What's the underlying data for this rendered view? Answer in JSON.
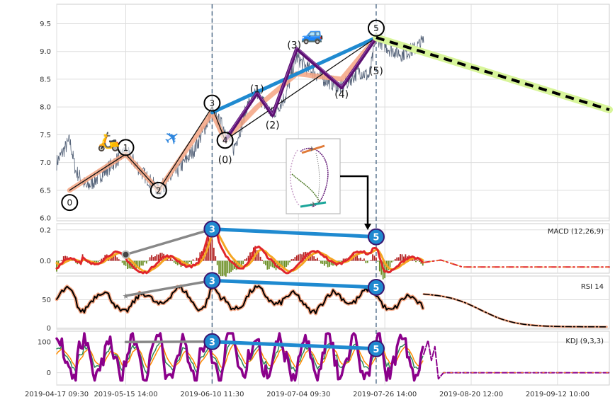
{
  "chart_data": {
    "type": "line",
    "title": "",
    "x_tick_labels": [
      "2019-04-17 09:30",
      "2019-05-15 14:00",
      "2019-06-10 11:30",
      "2019-07-04 09:30",
      "2019-07-26 14:00",
      "2019-08-20 12:00",
      "2019-09-12 10:00"
    ],
    "x_tick_positions": [
      0,
      80,
      180,
      280,
      380,
      480,
      580
    ],
    "x_range": [
      0,
      640
    ],
    "dashed_vlines_x": [
      180,
      370
    ],
    "grid": true,
    "price": {
      "ylim": [
        5.95,
        9.85
      ],
      "yticks": [
        "6.0",
        "6.5",
        "7.0",
        "7.5",
        "8.0",
        "8.5",
        "9.0",
        "9.5"
      ],
      "ytick_values": [
        6.0,
        6.5,
        7.0,
        7.5,
        8.0,
        8.5,
        9.0,
        9.5
      ],
      "anchors": [
        {
          "x": 0,
          "y": 7.0
        },
        {
          "x": 15,
          "y": 7.4
        },
        {
          "x": 22,
          "y": 6.85
        },
        {
          "x": 35,
          "y": 6.55
        },
        {
          "x": 60,
          "y": 6.9
        },
        {
          "x": 80,
          "y": 7.2
        },
        {
          "x": 100,
          "y": 6.8
        },
        {
          "x": 118,
          "y": 6.5
        },
        {
          "x": 140,
          "y": 6.85
        },
        {
          "x": 160,
          "y": 7.25
        },
        {
          "x": 180,
          "y": 7.9
        },
        {
          "x": 195,
          "y": 7.6
        },
        {
          "x": 205,
          "y": 7.25
        },
        {
          "x": 215,
          "y": 7.7
        },
        {
          "x": 220,
          "y": 8.0
        },
        {
          "x": 232,
          "y": 8.25
        },
        {
          "x": 250,
          "y": 7.85
        },
        {
          "x": 265,
          "y": 8.2
        },
        {
          "x": 278,
          "y": 8.9
        },
        {
          "x": 290,
          "y": 8.7
        },
        {
          "x": 310,
          "y": 8.5
        },
        {
          "x": 330,
          "y": 8.35
        },
        {
          "x": 350,
          "y": 8.65
        },
        {
          "x": 362,
          "y": 8.55
        },
        {
          "x": 370,
          "y": 9.25
        },
        {
          "x": 385,
          "y": 9.05
        },
        {
          "x": 400,
          "y": 8.95
        },
        {
          "x": 415,
          "y": 9.05
        },
        {
          "x": 425,
          "y": 9.2
        }
      ],
      "forecast_line": {
        "start": [
          370,
          9.25
        ],
        "end": [
          640,
          7.95
        ]
      },
      "zigzag": [
        [
          15,
          6.5
        ],
        [
          80,
          7.15
        ],
        [
          118,
          6.5
        ],
        [
          180,
          8.0
        ],
        [
          195,
          7.4
        ],
        [
          370,
          9.25
        ]
      ],
      "salmon_path": [
        [
          15,
          6.5
        ],
        [
          80,
          7.15
        ],
        [
          118,
          6.5
        ],
        [
          180,
          7.9
        ],
        [
          195,
          7.4
        ],
        [
          232,
          8.0
        ],
        [
          278,
          8.6
        ],
        [
          330,
          8.5
        ],
        [
          370,
          9.25
        ]
      ],
      "blue_trend": {
        "start": [
          180,
          7.9
        ],
        "end": [
          370,
          9.25
        ]
      },
      "purple_waves": [
        [
          195,
          7.4
        ],
        [
          232,
          8.25
        ],
        [
          250,
          7.85
        ],
        [
          278,
          9.05
        ],
        [
          330,
          8.35
        ],
        [
          370,
          9.25
        ]
      ],
      "points": [
        {
          "label": "0",
          "x": 15,
          "y": 6.28,
          "circled": true
        },
        {
          "label": "1",
          "x": 80,
          "y": 7.27,
          "circled": true
        },
        {
          "label": "2",
          "x": 118,
          "y": 6.5,
          "circled": true
        },
        {
          "label": "3",
          "x": 180,
          "y": 8.07,
          "circled": true
        },
        {
          "label": "4",
          "x": 195,
          "y": 7.4,
          "circled": true
        },
        {
          "label": "5",
          "x": 370,
          "y": 9.42,
          "circled": true
        },
        {
          "label": "(1)",
          "x": 232,
          "y": 8.33,
          "circled": false
        },
        {
          "label": "(2)",
          "x": 250,
          "y": 7.68,
          "circled": false
        },
        {
          "label": "(0)",
          "x": 195,
          "y": 7.05,
          "circled": false
        },
        {
          "label": "(3)",
          "x": 275,
          "y": 9.12,
          "circled": false
        },
        {
          "label": "(4)",
          "x": 330,
          "y": 8.23,
          "circled": false
        },
        {
          "label": "(5)",
          "x": 370,
          "y": 8.65,
          "circled": false
        }
      ],
      "emojis": [
        {
          "name": "scooter",
          "glyph": "🛵",
          "x": 60,
          "y": 7.27
        },
        {
          "name": "airplane",
          "glyph": "✈",
          "x": 138,
          "y": 7.35
        },
        {
          "name": "car",
          "glyph": "🚙",
          "x": 296,
          "y": 9.2
        }
      ]
    },
    "macd": {
      "label": "MACD (12,26,9)",
      "ylim": [
        -0.08,
        0.24
      ],
      "yticks": [
        "0.0",
        "0.2"
      ],
      "ytick_values": [
        0.0,
        0.2
      ],
      "divergence_from": [
        80,
        0.04
      ],
      "divergence_peak": [
        180,
        0.205
      ],
      "divergence_to": [
        370,
        0.155
      ],
      "forecast_y": -0.04
    },
    "rsi": {
      "label": "RSI 14",
      "ylim": [
        -2,
        92
      ],
      "yticks": [
        "0",
        "50"
      ],
      "ytick_values": [
        0,
        50
      ],
      "divergence_from": [
        80,
        57
      ],
      "divergence_peak": [
        180,
        84
      ],
      "divergence_to": [
        370,
        72
      ],
      "forecast_end": 2
    },
    "kdj": {
      "label": "KDJ (9,3,3)",
      "ylim": [
        -40,
        135
      ],
      "yticks": [
        "0",
        "100"
      ],
      "ytick_values": [
        0,
        100
      ],
      "divergence_from": [
        80,
        100
      ],
      "divergence_peak": [
        180,
        101
      ],
      "divergence_to": [
        370,
        78
      ],
      "forecast_y": 0
    },
    "badges": [
      "3",
      "5"
    ]
  },
  "colors": {
    "price": "#56647a",
    "zigzag": "#111111",
    "salmon": "#f4a582",
    "blue": "#1f8ad0",
    "purple": "#5b0f70",
    "forecast_glow": "#d8f59a",
    "forecast_dash": "#000000",
    "macd_line": "#e0262b",
    "macd_signal": "#f5a623",
    "hist_pos": "#b22222",
    "hist_neg": "#6b8e23",
    "rsi_line": "#000000",
    "rsi_glow": "#f4a582",
    "kdj_k": "#8b008b",
    "kdj_d": "#ff8c00",
    "kdj_j": "#2e8b57",
    "grey": "#888888",
    "vline": "#4a6785",
    "badge_fill": "#1f8ad0",
    "badge_ring": "#3a1670"
  }
}
